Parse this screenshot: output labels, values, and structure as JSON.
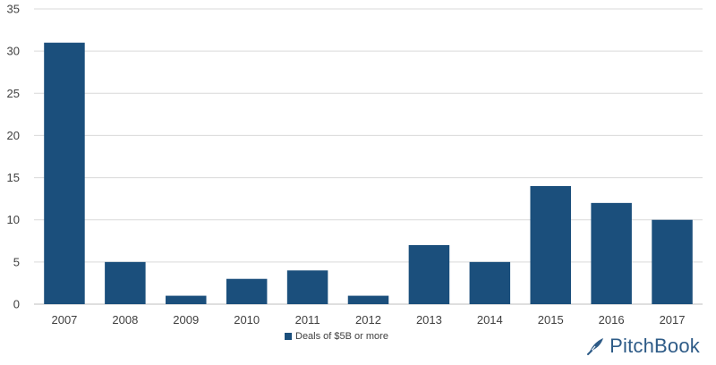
{
  "chart_data": {
    "type": "bar",
    "categories": [
      "2007",
      "2008",
      "2009",
      "2010",
      "2011",
      "2012",
      "2013",
      "2014",
      "2015",
      "2016",
      "2017"
    ],
    "series": [
      {
        "name": "Deals of $5B or more",
        "values": [
          31,
          5,
          1,
          3,
          4,
          1,
          7,
          5,
          14,
          12,
          10
        ]
      }
    ],
    "ylim": [
      0,
      35
    ],
    "yticks": [
      0,
      5,
      10,
      15,
      20,
      25,
      30,
      35
    ],
    "grid": true,
    "legend_position": "bottom",
    "bar_color": "#1b4f7c"
  },
  "legend": {
    "label": "Deals of $5B or more"
  },
  "branding": {
    "logo_text": "PitchBook",
    "logo_color": "#2e5b87"
  }
}
